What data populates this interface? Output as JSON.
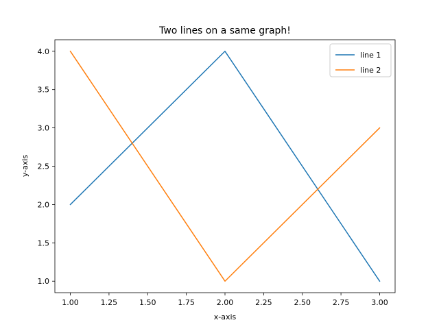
{
  "chart_data": {
    "type": "line",
    "title": "Two lines on a same graph!",
    "xlabel": "x-axis",
    "ylabel": "y-axis",
    "xlim": [
      0.9,
      3.1
    ],
    "ylim": [
      0.85,
      4.15
    ],
    "xticks": [
      "1.00",
      "1.25",
      "1.50",
      "1.75",
      "2.00",
      "2.25",
      "2.50",
      "2.75",
      "3.00"
    ],
    "yticks": [
      "1.0",
      "1.5",
      "2.0",
      "2.5",
      "3.0",
      "3.5",
      "4.0"
    ],
    "grid": false,
    "legend": {
      "placement": "top-right"
    },
    "series": [
      {
        "name": "line 1",
        "color": "#1f77b4",
        "x": [
          1,
          2,
          3
        ],
        "y": [
          2,
          4,
          1
        ]
      },
      {
        "name": "line 2",
        "color": "#ff7f0e",
        "x": [
          1,
          2,
          3
        ],
        "y": [
          4,
          1,
          3
        ]
      }
    ]
  }
}
